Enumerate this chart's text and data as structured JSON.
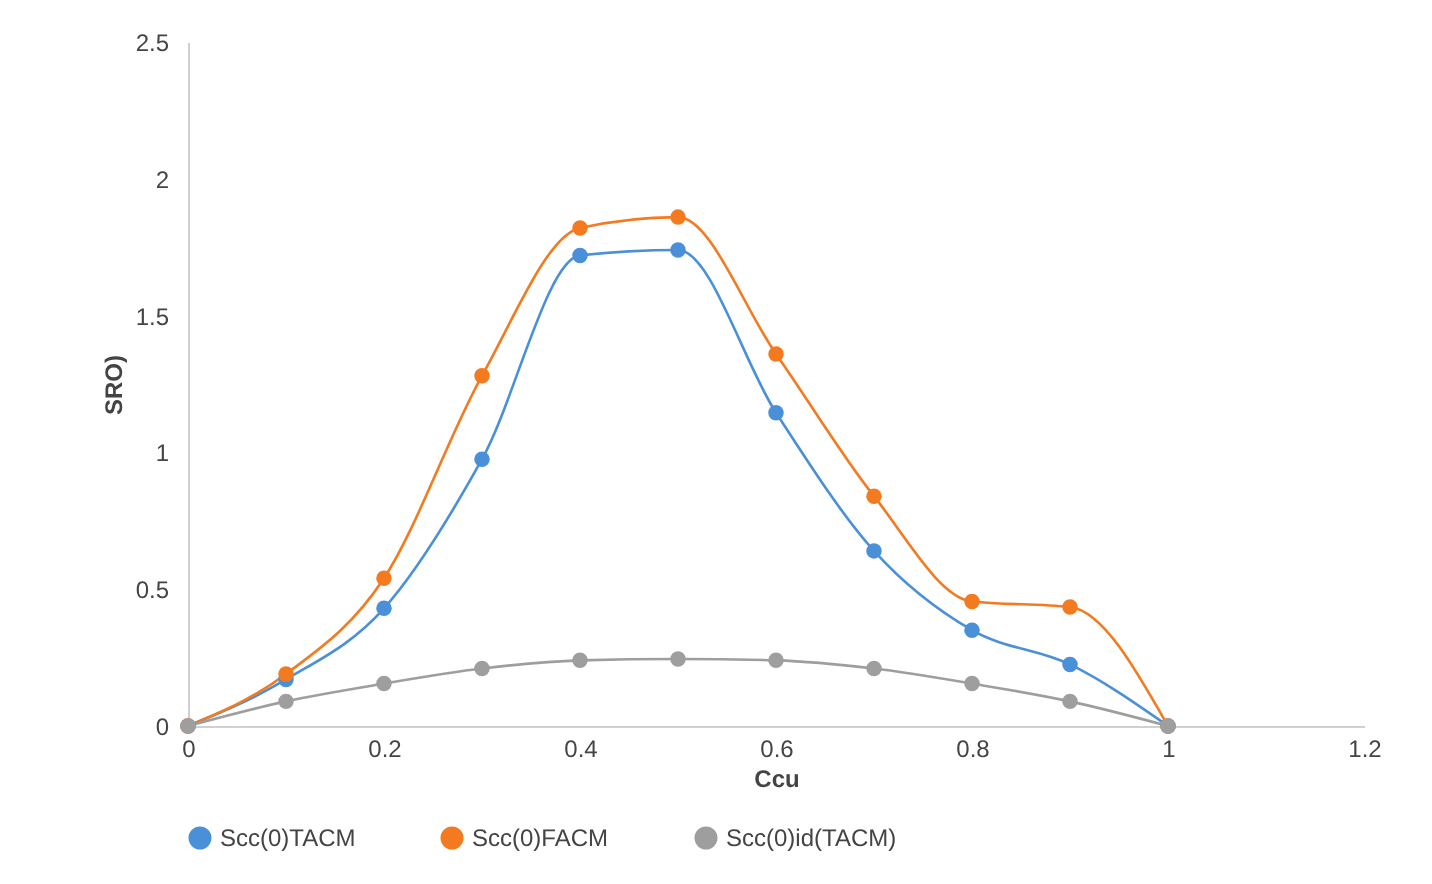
{
  "chart_data": {
    "type": "line",
    "xlabel": "Ccu",
    "ylabel": "SRO)",
    "x": [
      0,
      0.1,
      0.2,
      0.3,
      0.4,
      0.5,
      0.6,
      0.7,
      0.8,
      0.9,
      1
    ],
    "series": [
      {
        "name": "Scc(0)TACM",
        "color": "#4a90d9",
        "values": [
          0,
          0.17,
          0.43,
          0.975,
          1.72,
          1.74,
          1.145,
          0.64,
          0.35,
          0.225,
          0
        ]
      },
      {
        "name": "Scc(0)FACM",
        "color": "#f47a20",
        "values": [
          0,
          0.19,
          0.54,
          1.28,
          1.82,
          1.86,
          1.36,
          0.84,
          0.455,
          0.435,
          0
        ]
      },
      {
        "name": "Scc(0)id(TACM)",
        "color": "#9e9e9e",
        "values": [
          0,
          0.09,
          0.155,
          0.21,
          0.24,
          0.245,
          0.24,
          0.21,
          0.155,
          0.09,
          0
        ]
      }
    ],
    "xlim": [
      0,
      1.2
    ],
    "xticks": [
      0,
      0.2,
      0.4,
      0.6,
      0.8,
      1,
      1.2
    ],
    "ylim": [
      0,
      2.5
    ],
    "yticks": [
      0,
      0.5,
      1,
      1.5,
      2,
      2.5
    ],
    "grid": false,
    "legend": "bottom",
    "marker": "circle",
    "line_style": "solid"
  }
}
